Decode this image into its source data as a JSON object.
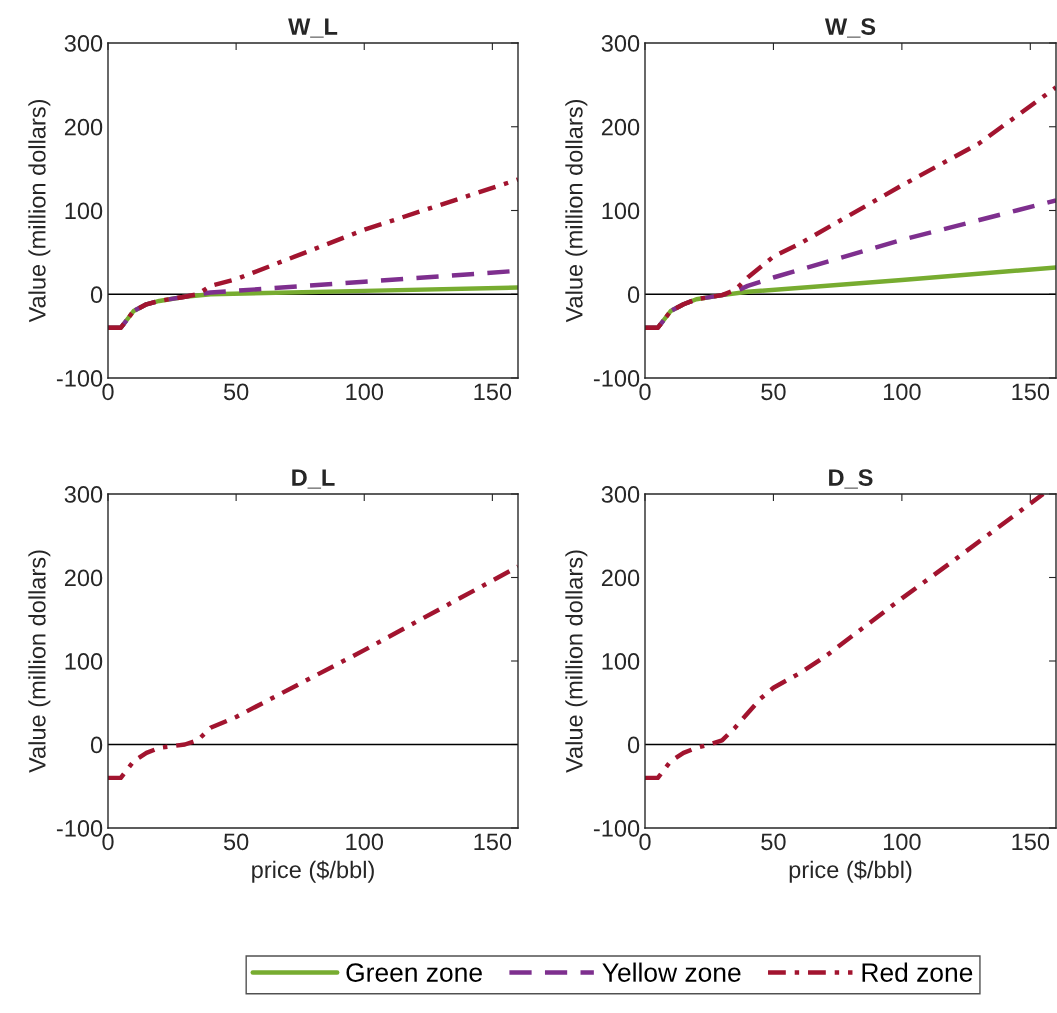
{
  "chart_data": [
    {
      "type": "line",
      "title": "W_L",
      "ylabel": "Value (million dollars)",
      "xlim": [
        0,
        160
      ],
      "xticks": [
        0,
        50,
        100,
        150
      ],
      "ylim": [
        -100,
        300
      ],
      "yticks": [
        -100,
        0,
        100,
        200,
        300
      ],
      "grid": false,
      "legend": "bottom",
      "ref_lines": [
        {
          "axis": "y",
          "value": 0,
          "color": "#000000"
        }
      ],
      "series": [
        {
          "name": "Green zone",
          "color": "#77ac30",
          "line_style": "solid",
          "x": [
            0,
            5,
            10,
            15,
            20,
            30,
            40,
            100,
            160
          ],
          "values": [
            -40,
            -40,
            -20,
            -12,
            -8,
            -3,
            0,
            4,
            8
          ]
        },
        {
          "name": "Yellow zone",
          "color": "#7e2f8e",
          "line_style": "dashed",
          "x": [
            0,
            5,
            10,
            15,
            20,
            30,
            35,
            40,
            100,
            160
          ],
          "values": [
            -40,
            -40,
            -20,
            -12,
            -8,
            -3,
            0,
            2,
            15,
            28
          ]
        },
        {
          "name": "Red zone",
          "color": "#a2142f",
          "line_style": "dashdot",
          "x": [
            0,
            5,
            10,
            15,
            20,
            30,
            35,
            40,
            50,
            100,
            160
          ],
          "values": [
            -40,
            -40,
            -20,
            -12,
            -8,
            -3,
            0,
            10,
            18,
            77,
            137
          ]
        }
      ]
    },
    {
      "type": "line",
      "title": "W_S",
      "ylabel": "Value (million dollars)",
      "xlim": [
        0,
        160
      ],
      "xticks": [
        0,
        50,
        100,
        150
      ],
      "ylim": [
        -100,
        300
      ],
      "yticks": [
        -100,
        0,
        100,
        200,
        300
      ],
      "grid": false,
      "ref_lines": [
        {
          "axis": "y",
          "value": 0,
          "color": "#000000"
        }
      ],
      "series": [
        {
          "color": "#77ac30",
          "line_style": "solid",
          "x": [
            0,
            5,
            10,
            15,
            20,
            30,
            40,
            100,
            160
          ],
          "values": [
            -40,
            -40,
            -20,
            -12,
            -6,
            -1,
            3,
            17,
            32
          ]
        },
        {
          "color": "#7e2f8e",
          "line_style": "dashed",
          "x": [
            0,
            5,
            10,
            15,
            20,
            30,
            35,
            40,
            50,
            100,
            160
          ],
          "values": [
            -40,
            -40,
            -20,
            -12,
            -6,
            -1,
            3,
            10,
            20,
            65,
            112
          ]
        },
        {
          "color": "#a2142f",
          "line_style": "dashdot",
          "x": [
            0,
            5,
            10,
            15,
            20,
            30,
            35,
            40,
            50,
            60,
            100,
            130,
            160
          ],
          "values": [
            -40,
            -40,
            -20,
            -12,
            -6,
            -1,
            5,
            20,
            45,
            60,
            130,
            180,
            247
          ]
        }
      ]
    },
    {
      "type": "line",
      "title": "D_L",
      "xlabel": "price ($/bbl)",
      "ylabel": "Value (million dollars)",
      "xlim": [
        0,
        160
      ],
      "xticks": [
        0,
        50,
        100,
        150
      ],
      "ylim": [
        -100,
        300
      ],
      "yticks": [
        -100,
        0,
        100,
        200,
        300
      ],
      "grid": false,
      "ref_lines": [
        {
          "axis": "y",
          "value": 0,
          "color": "#000000"
        }
      ],
      "series": [
        {
          "color": "#a2142f",
          "line_style": "dashdot",
          "x": [
            0,
            5,
            10,
            15,
            20,
            30,
            35,
            40,
            50,
            100,
            160
          ],
          "values": [
            -40,
            -40,
            -20,
            -10,
            -4,
            0,
            5,
            20,
            33,
            113,
            213
          ]
        }
      ]
    },
    {
      "type": "line",
      "title": "D_S",
      "xlabel": "price ($/bbl)",
      "ylabel": "Value (million dollars)",
      "xlim": [
        0,
        160
      ],
      "xticks": [
        0,
        50,
        100,
        150
      ],
      "ylim": [
        -100,
        300
      ],
      "yticks": [
        -100,
        0,
        100,
        200,
        300
      ],
      "grid": false,
      "ref_lines": [
        {
          "axis": "y",
          "value": 0,
          "color": "#000000"
        }
      ],
      "series": [
        {
          "color": "#a2142f",
          "line_style": "dashdot",
          "x": [
            0,
            5,
            10,
            15,
            20,
            25,
            30,
            35,
            45,
            50,
            60,
            70,
            100,
            120,
            155
          ],
          "values": [
            -40,
            -40,
            -20,
            -10,
            -4,
            0,
            5,
            20,
            55,
            68,
            85,
            105,
            175,
            220,
            300
          ]
        }
      ]
    }
  ]
}
